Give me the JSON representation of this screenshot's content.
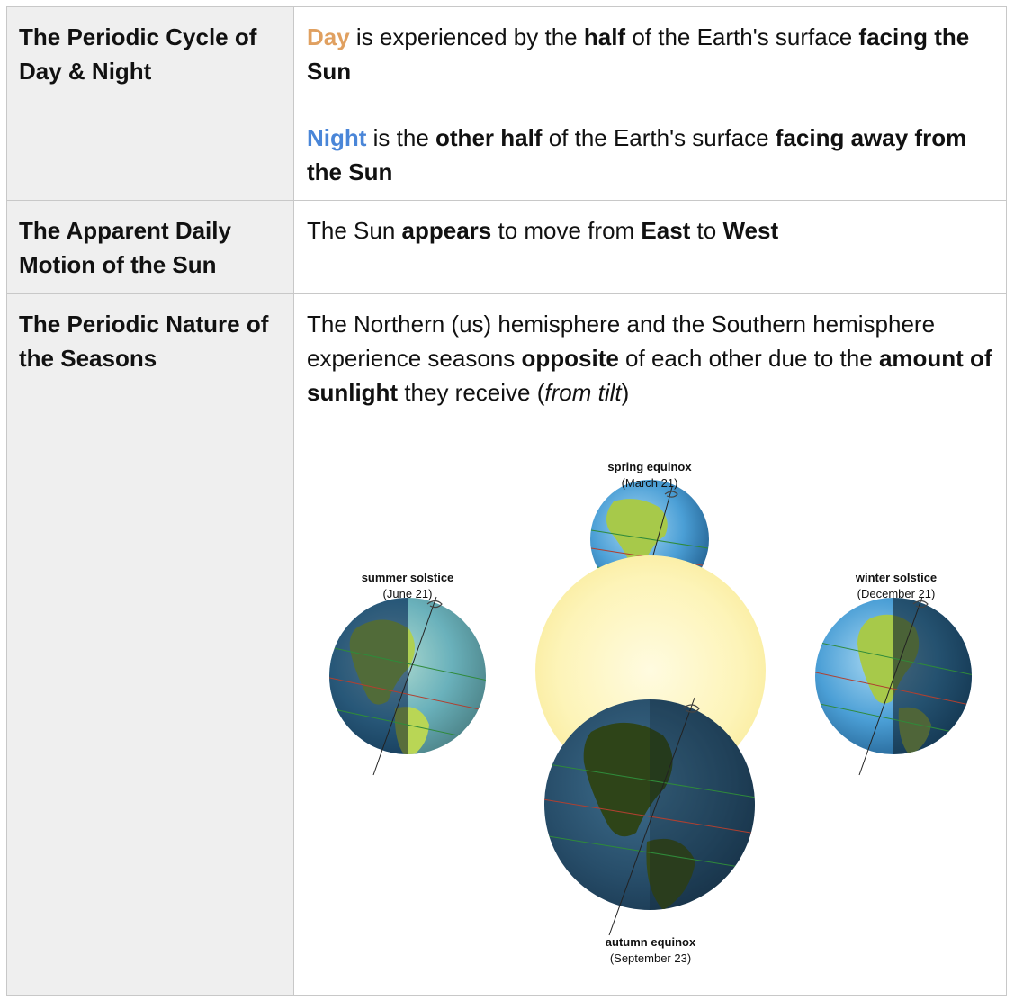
{
  "rows": [
    {
      "heading": "The Periodic Cycle of Day & Night",
      "p1": {
        "day": "Day",
        "t1": " is experienced by the ",
        "b1": "half",
        "t2": " of the Earth's surface ",
        "b2": "facing the Sun"
      },
      "p2": {
        "night": "Night",
        "t1": " is the ",
        "b1": "other half",
        "t2": " of the Earth's surface ",
        "b2": "facing away from the Sun"
      }
    },
    {
      "heading": "The Apparent Daily Motion of the Sun",
      "p1": {
        "t1": "The Sun ",
        "b1": "appears",
        "t2": " to move from ",
        "b2": "East",
        "t3": " to ",
        "b3": "West"
      }
    },
    {
      "heading": "The Periodic Nature of the Seasons",
      "p1": {
        "t1": "The Northern (us) hemisphere and the Southern hemisphere experience seasons ",
        "b1": "opposite",
        "t2": " of each other due to the ",
        "b2": "amount of sunlight",
        "t3": " they receive (",
        "i1": "from tilt",
        "t4": ")"
      }
    }
  ],
  "diagram": {
    "spring": {
      "name": "spring equinox",
      "date": "(March 21)"
    },
    "summer": {
      "name": "summer solstice",
      "date": "(June 21)"
    },
    "winter": {
      "name": "winter solstice",
      "date": "(December 21)"
    },
    "autumn": {
      "name": "autumn equinox",
      "date": "(September 23)"
    }
  },
  "colors": {
    "day_accent": "#e0a060",
    "night_accent": "#4a86d8",
    "header_bg": "#efefef",
    "border": "#c8c8c8",
    "sun": "#fdf6c0"
  }
}
